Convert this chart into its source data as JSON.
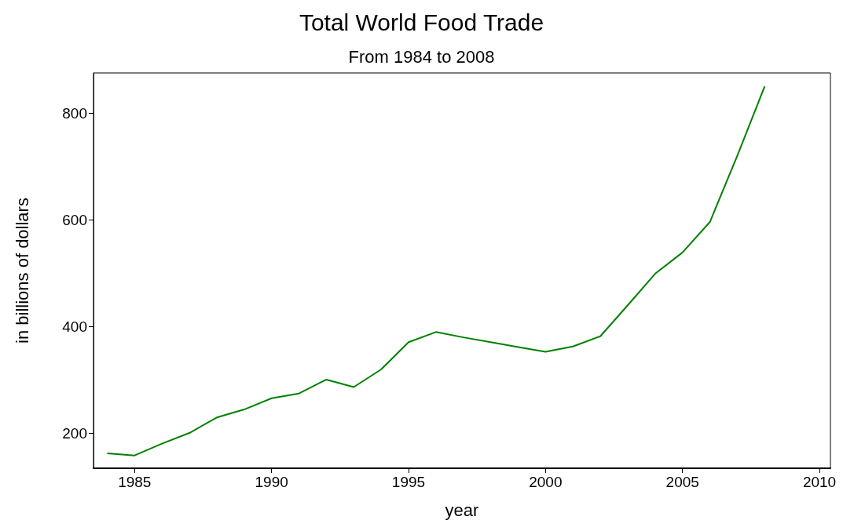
{
  "chart_data": {
    "type": "line",
    "title": "Total World Food Trade",
    "subtitle": "From 1984 to 2008",
    "xlabel": "year",
    "ylabel": "in billions of dollars",
    "x": [
      1984,
      1985,
      1986,
      1987,
      1988,
      1989,
      1990,
      1991,
      1992,
      1993,
      1994,
      1995,
      1996,
      1997,
      1998,
      1999,
      2000,
      2001,
      2002,
      2003,
      2004,
      2005,
      2006,
      2007,
      2008
    ],
    "series": [
      {
        "color": "#008000",
        "values": [
          163,
          159,
          181,
          201,
          230,
          245,
          266,
          275,
          301,
          287,
          320,
          371,
          390,
          380,
          371,
          362,
          353,
          363,
          382,
          440,
          499,
          539,
          596,
          720,
          850
        ]
      }
    ],
    "xlim": [
      1983.5,
      2010.4
    ],
    "xticks": [
      1985,
      1990,
      1995,
      2000,
      2005,
      2010
    ],
    "ylim": [
      135,
      875
    ],
    "yticks": [
      200,
      400,
      600,
      800
    ],
    "grid": false,
    "marker": "none",
    "line_style": "solid"
  }
}
